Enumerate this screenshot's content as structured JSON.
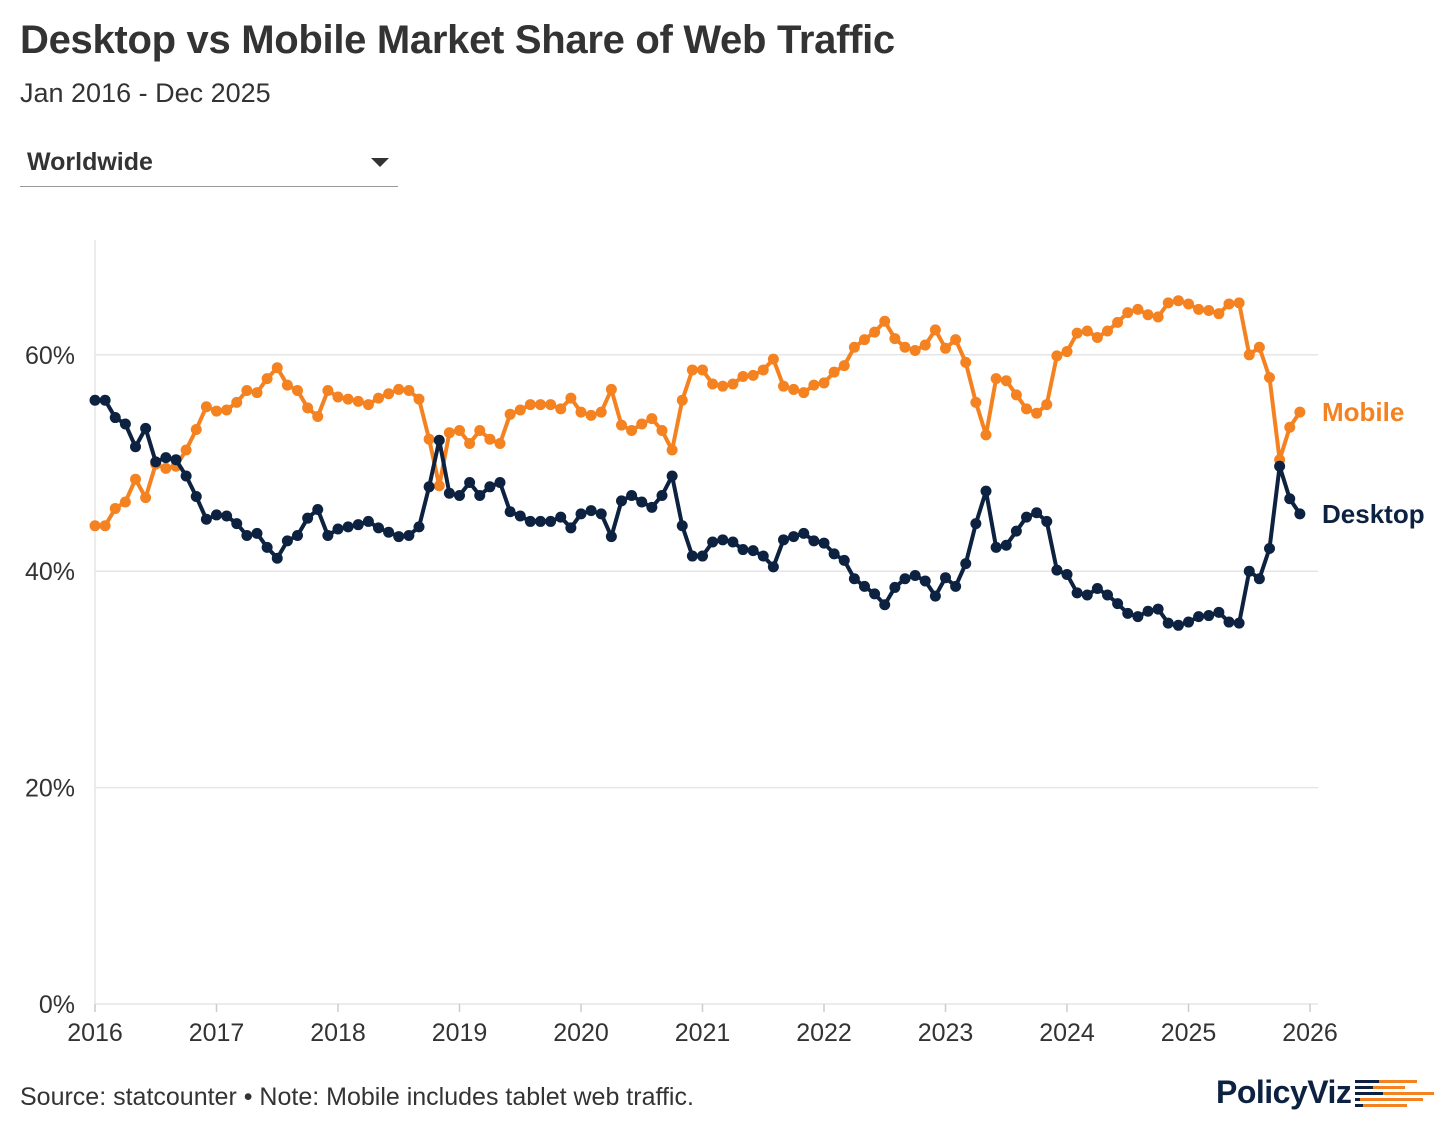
{
  "header": {
    "title": "Desktop vs Mobile Market Share of Web Traffic",
    "subtitle": "Jan 2016 - Dec 2025"
  },
  "filter": {
    "selected": "Worldwide"
  },
  "footer": {
    "source": "Source: statcounter • Note: Mobile includes tablet web traffic.",
    "logo": "PolicyViz"
  },
  "colors": {
    "mobile": "#f58220",
    "desktop": "#0d2240",
    "grid": "#e6e6e6",
    "text": "#333333"
  },
  "chart_data": {
    "type": "line",
    "title": "Desktop vs Mobile Market Share of Web Traffic",
    "xlabel": "",
    "ylabel": "",
    "x_start": "2016-01",
    "x_frequency": "monthly",
    "xlim": [
      2016,
      2026
    ],
    "ylim": [
      0,
      70
    ],
    "x_ticks": [
      "2016",
      "2017",
      "2018",
      "2019",
      "2020",
      "2021",
      "2022",
      "2023",
      "2024",
      "2025",
      "2026"
    ],
    "y_ticks": [
      {
        "value": 0,
        "label": "0%"
      },
      {
        "value": 20,
        "label": "20%"
      },
      {
        "value": 40,
        "label": "40%"
      },
      {
        "value": 60,
        "label": "60%"
      }
    ],
    "grid": true,
    "legend": "direct labels at line ends (right)",
    "series": [
      {
        "name": "Mobile",
        "color": "#f58220",
        "values": [
          44.2,
          44.2,
          45.8,
          46.4,
          48.5,
          46.8,
          49.9,
          49.5,
          49.7,
          51.2,
          53.1,
          55.2,
          54.8,
          54.9,
          55.6,
          56.7,
          56.5,
          57.8,
          58.8,
          57.2,
          56.7,
          55.1,
          54.3,
          56.7,
          56.1,
          55.9,
          55.7,
          55.4,
          56.0,
          56.4,
          56.8,
          56.7,
          55.9,
          52.2,
          47.9,
          52.8,
          53.0,
          51.8,
          53.0,
          52.2,
          51.8,
          54.5,
          54.9,
          55.4,
          55.4,
          55.4,
          55.0,
          56.0,
          54.7,
          54.4,
          54.7,
          56.8,
          53.5,
          53.0,
          53.6,
          54.1,
          53.0,
          51.2,
          55.8,
          58.6,
          58.6,
          57.3,
          57.1,
          57.3,
          58.0,
          58.1,
          58.6,
          59.6,
          57.1,
          56.8,
          56.5,
          57.2,
          57.4,
          58.4,
          59.0,
          60.7,
          61.4,
          62.1,
          63.1,
          61.5,
          60.7,
          60.4,
          60.9,
          62.3,
          60.6,
          61.4,
          59.3,
          55.6,
          52.6,
          57.8,
          57.6,
          56.3,
          55.0,
          54.6,
          55.4,
          59.9,
          60.3,
          62.0,
          62.2,
          61.6,
          62.2,
          63.0,
          63.9,
          64.2,
          63.7,
          63.5,
          64.8,
          65.0,
          64.7,
          64.2,
          64.1,
          63.8,
          64.7,
          64.8,
          60.0,
          60.7,
          57.9,
          50.3,
          53.3,
          54.7
        ]
      },
      {
        "name": "Desktop",
        "color": "#0d2240",
        "values": [
          55.8,
          55.8,
          54.2,
          53.6,
          51.5,
          53.2,
          50.1,
          50.5,
          50.3,
          48.8,
          46.9,
          44.8,
          45.2,
          45.1,
          44.4,
          43.3,
          43.5,
          42.2,
          41.2,
          42.8,
          43.3,
          44.9,
          45.7,
          43.3,
          43.9,
          44.1,
          44.3,
          44.6,
          44.0,
          43.6,
          43.2,
          43.3,
          44.1,
          47.8,
          52.1,
          47.2,
          47.0,
          48.2,
          47.0,
          47.8,
          48.2,
          45.5,
          45.1,
          44.6,
          44.6,
          44.6,
          45.0,
          44.0,
          45.3,
          45.6,
          45.3,
          43.2,
          46.5,
          47.0,
          46.4,
          45.9,
          47.0,
          48.8,
          44.2,
          41.4,
          41.4,
          42.7,
          42.9,
          42.7,
          42.0,
          41.9,
          41.4,
          40.4,
          42.9,
          43.2,
          43.5,
          42.8,
          42.6,
          41.6,
          41.0,
          39.3,
          38.6,
          37.9,
          36.9,
          38.5,
          39.3,
          39.6,
          39.1,
          37.7,
          39.4,
          38.6,
          40.7,
          44.4,
          47.4,
          42.2,
          42.4,
          43.7,
          45.0,
          45.4,
          44.6,
          40.1,
          39.7,
          38.0,
          37.8,
          38.4,
          37.8,
          37.0,
          36.1,
          35.8,
          36.3,
          36.5,
          35.2,
          35.0,
          35.3,
          35.8,
          35.9,
          36.2,
          35.3,
          35.2,
          40.0,
          39.3,
          42.1,
          49.7,
          46.7,
          45.3
        ]
      }
    ]
  }
}
